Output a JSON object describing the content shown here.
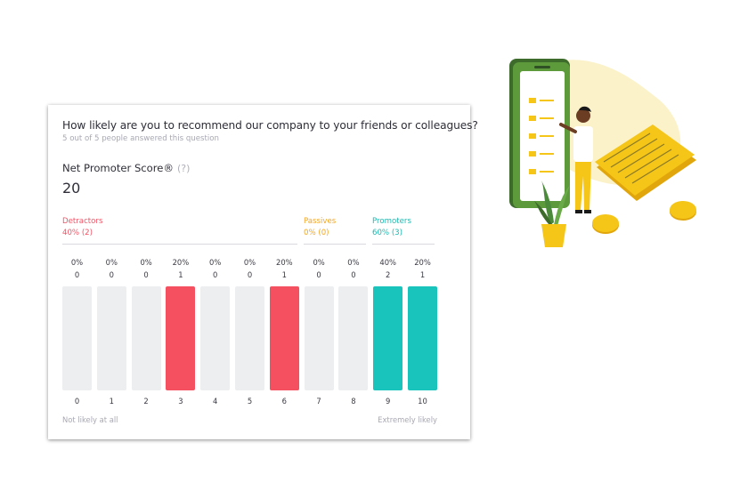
{
  "question": {
    "title": "How likely are you to recommend our company to your friends or colleagues?",
    "subtitle": "5 out of 5 people answered this question"
  },
  "nps": {
    "label": "Net Promoter Score®",
    "help": "(?)",
    "score": "20"
  },
  "groups": {
    "detractors": {
      "name": "Detractors",
      "value": "40% (2)",
      "color": "#f05466"
    },
    "passives": {
      "name": "Passives",
      "value": "0% (0)",
      "color": "#f4a623"
    },
    "promoters": {
      "name": "Promoters",
      "value": "60% (3)",
      "color": "#1fb8b0"
    }
  },
  "scale": {
    "left_label": "Not likely at all",
    "right_label": "Extremely likely"
  },
  "chart_data": {
    "type": "bar",
    "categories": [
      "0",
      "1",
      "2",
      "3",
      "4",
      "5",
      "6",
      "7",
      "8",
      "9",
      "10"
    ],
    "counts": [
      0,
      0,
      0,
      1,
      0,
      0,
      1,
      0,
      0,
      2,
      1
    ],
    "percents": [
      "0%",
      "0%",
      "0%",
      "20%",
      "0%",
      "0%",
      "20%",
      "0%",
      "0%",
      "40%",
      "20%"
    ],
    "colors": {
      "detractor": "#f5505f",
      "promoter": "#18c4bc",
      "empty": "#eceef0"
    }
  }
}
